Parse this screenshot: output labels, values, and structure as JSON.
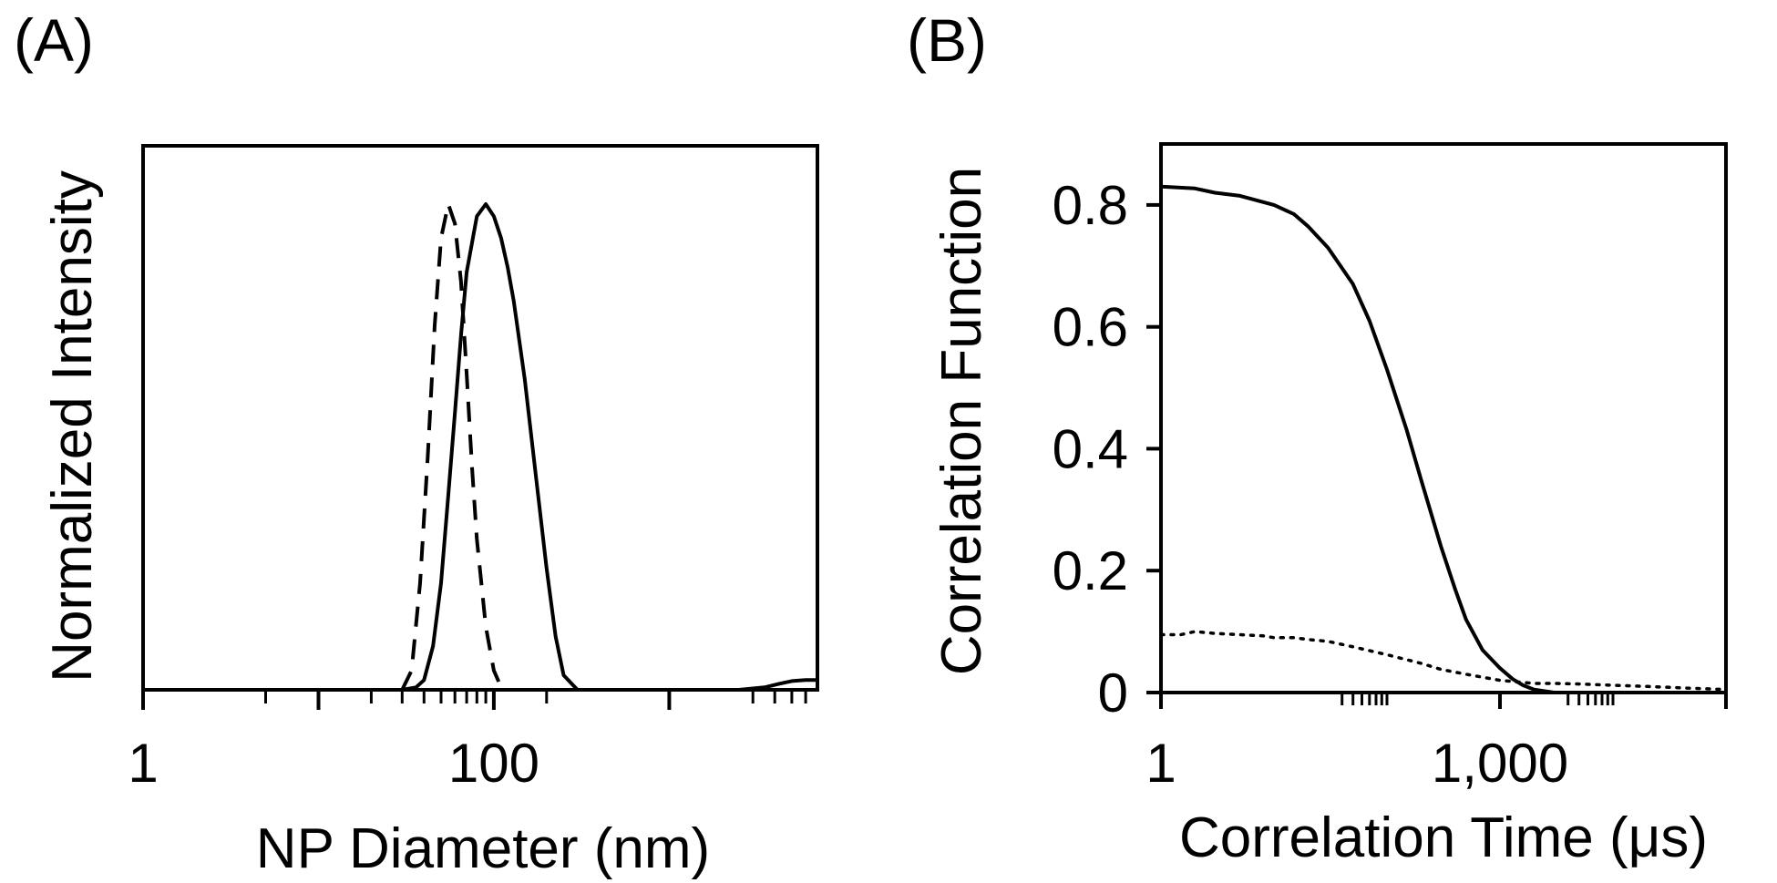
{
  "figure": {
    "background": "#ffffff",
    "ink": "#000000"
  },
  "chart_data": [
    {
      "panel_label": "(A)",
      "type": "line",
      "title": "",
      "xlabel": "NP Diameter (nm)",
      "ylabel": "Normalized Intensity",
      "xscale": "log",
      "xlim": [
        1,
        7000
      ],
      "ylim": [
        0,
        1.12
      ],
      "x_tick_labels": [
        {
          "value": 1,
          "label": "1"
        },
        {
          "value": 100,
          "label": "100"
        }
      ],
      "x_major_ticks": [
        1,
        10,
        100,
        1000
      ],
      "x_minor_ticks": [
        5,
        20,
        30,
        40,
        50,
        60,
        70,
        80,
        90,
        200,
        3000,
        4000,
        5000,
        6000
      ],
      "y_tick_labels": [],
      "grid": false,
      "legend": "none",
      "series": [
        {
          "name": "solid",
          "style": "solid",
          "x": [
            1,
            30,
            36,
            40,
            45,
            50,
            55,
            60,
            65,
            70,
            80,
            90,
            100,
            110,
            120,
            130,
            150,
            175,
            200,
            225,
            250,
            300,
            400,
            1000,
            2500,
            3500,
            4200,
            5000,
            6000,
            7000
          ],
          "y": [
            0,
            0,
            0.005,
            0.02,
            0.09,
            0.22,
            0.4,
            0.57,
            0.73,
            0.86,
            0.975,
            1.0,
            0.975,
            0.93,
            0.87,
            0.8,
            0.64,
            0.43,
            0.25,
            0.11,
            0.03,
            0,
            0,
            0,
            0,
            0.005,
            0.012,
            0.018,
            0.02,
            0.02
          ]
        },
        {
          "name": "dashed",
          "style": "dashed",
          "x": [
            30,
            34,
            38,
            42,
            46,
            50,
            55,
            60,
            65,
            70,
            75,
            80,
            90,
            100,
            110,
            115
          ],
          "y": [
            0,
            0.04,
            0.22,
            0.48,
            0.75,
            0.93,
            1.0,
            0.96,
            0.84,
            0.65,
            0.46,
            0.31,
            0.13,
            0.04,
            0.005,
            0
          ]
        }
      ]
    },
    {
      "panel_label": "(B)",
      "type": "line",
      "title": "",
      "xlabel": "Correlation Time (μs)",
      "ylabel": "Correlation Function",
      "xscale": "log",
      "xlim": [
        1,
        100000
      ],
      "ylim": [
        0,
        0.9
      ],
      "x_tick_labels": [
        {
          "value": 1,
          "label": "1"
        },
        {
          "value": 1000,
          "label": "1,000"
        }
      ],
      "x_major_ticks": [
        1,
        1000,
        100000
      ],
      "x_minor_ticks": [
        40,
        50,
        60,
        70,
        80,
        90,
        100,
        4000,
        5000,
        6000,
        7000,
        8000,
        9000,
        10000
      ],
      "y_ticks": [
        0,
        0.2,
        0.4,
        0.6,
        0.8
      ],
      "y_tick_labels": [
        "0",
        "0.2",
        "0.4",
        "0.6",
        "0.8"
      ],
      "grid": false,
      "legend": "none",
      "series": [
        {
          "name": "solid",
          "style": "solid",
          "x": [
            1,
            2,
            3,
            5,
            10,
            15,
            20,
            30,
            50,
            70,
            100,
            150,
            200,
            300,
            400,
            500,
            700,
            1000,
            1300,
            1600,
            2000,
            3000,
            5000,
            10000,
            100000
          ],
          "y": [
            0.83,
            0.827,
            0.82,
            0.815,
            0.8,
            0.785,
            0.765,
            0.73,
            0.67,
            0.61,
            0.53,
            0.43,
            0.35,
            0.24,
            0.17,
            0.12,
            0.07,
            0.04,
            0.022,
            0.012,
            0.005,
            0,
            0,
            0,
            0
          ]
        },
        {
          "name": "dotted",
          "style": "dotted",
          "x": [
            1,
            1.5,
            2,
            3,
            5,
            8,
            10,
            15,
            20,
            30,
            50,
            100,
            200,
            300,
            500,
            1000,
            2000,
            3000,
            5000,
            10000,
            20000,
            50000,
            100000
          ],
          "y": [
            0.095,
            0.095,
            0.1,
            0.097,
            0.095,
            0.093,
            0.09,
            0.09,
            0.087,
            0.084,
            0.075,
            0.062,
            0.048,
            0.038,
            0.03,
            0.02,
            0.015,
            0.015,
            0.014,
            0.012,
            0.01,
            0.007,
            0.005
          ]
        }
      ]
    }
  ]
}
